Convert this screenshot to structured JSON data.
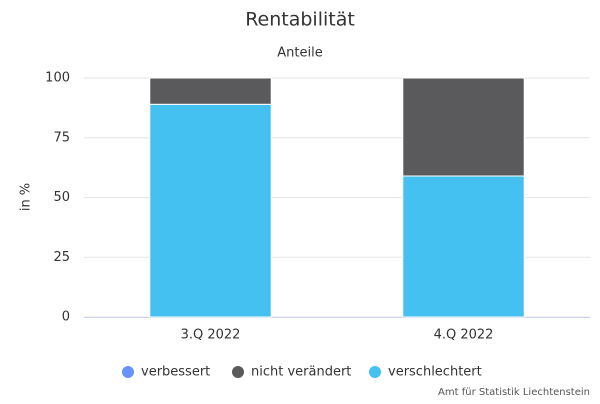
{
  "chart_data": {
    "type": "stacked_bar",
    "title": "Rentabilität",
    "subtitle": "Anteile",
    "y_label": "in %",
    "categories": [
      "3.Q 2022",
      "4.Q 2022"
    ],
    "series": [
      {
        "name": "verbessert",
        "color": "#6794fb",
        "values": [
          0,
          0
        ]
      },
      {
        "name": "nicht verändert",
        "color": "#5a595b",
        "values": [
          11,
          41
        ]
      },
      {
        "name": "verschlechtert",
        "color": "#44c1f0",
        "values": [
          89,
          59
        ]
      }
    ],
    "ylim": [
      0,
      100
    ],
    "yticks": [
      0,
      25,
      50,
      75,
      100
    ],
    "grid": true,
    "credits": "Amt für Statistik Liechtenstein"
  }
}
